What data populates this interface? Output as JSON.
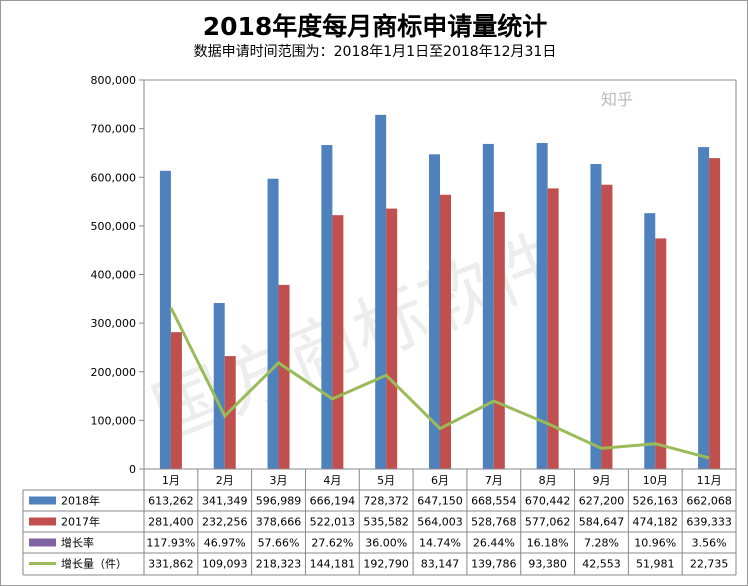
{
  "chart_data": {
    "type": "bar+line",
    "title": "2018年度每月商标申请量统计",
    "subtitle": "数据申请时间范围为：2018年1月1日至2018年12月31日",
    "categories": [
      "1月",
      "2月",
      "3月",
      "4月",
      "5月",
      "6月",
      "7月",
      "8月",
      "9月",
      "10月",
      "11月"
    ],
    "ylim": [
      0,
      800000
    ],
    "yticks": [
      "0",
      "100,000",
      "200,000",
      "300,000",
      "400,000",
      "500,000",
      "600,000",
      "700,000",
      "800,000"
    ],
    "grid": false,
    "legend": "data-table",
    "series": [
      {
        "name": "2018年",
        "type": "bar",
        "color": "#4f81bd",
        "values": [
          613262,
          341349,
          596989,
          666194,
          728372,
          647150,
          668554,
          670442,
          627200,
          526163,
          662068
        ],
        "labels": [
          "613,262",
          "341,349",
          "596,989",
          "666,194",
          "728,372",
          "647,150",
          "668,554",
          "670,442",
          "627,200",
          "526,163",
          "662,068"
        ]
      },
      {
        "name": "2017年",
        "type": "bar",
        "color": "#c0504d",
        "values": [
          281400,
          232256,
          378666,
          522013,
          535582,
          564003,
          528768,
          577062,
          584647,
          474182,
          639333
        ],
        "labels": [
          "281,400",
          "232,256",
          "378,666",
          "522,013",
          "535,582",
          "564,003",
          "528,768",
          "577,062",
          "584,647",
          "474,182",
          "639,333"
        ]
      },
      {
        "name": "增长率",
        "type": "none",
        "color": "#8064a2",
        "labels": [
          "117.93%",
          "46.97%",
          "57.66%",
          "27.62%",
          "36.00%",
          "14.74%",
          "26.44%",
          "16.18%",
          "7.28%",
          "10.96%",
          "3.56%"
        ]
      },
      {
        "name": "增长量（件）",
        "type": "line",
        "color": "#9bbb59",
        "values": [
          331862,
          109093,
          218323,
          144181,
          192790,
          83147,
          139786,
          93380,
          42553,
          51981,
          22735
        ],
        "labels": [
          "331,862",
          "109,093",
          "218,323",
          "144,181",
          "192,790",
          "83,147",
          "139,786",
          "93,380",
          "42,553",
          "51,981",
          "22,735"
        ]
      }
    ]
  },
  "watermark": "国方商标软件",
  "corner_watermark": "知乎"
}
